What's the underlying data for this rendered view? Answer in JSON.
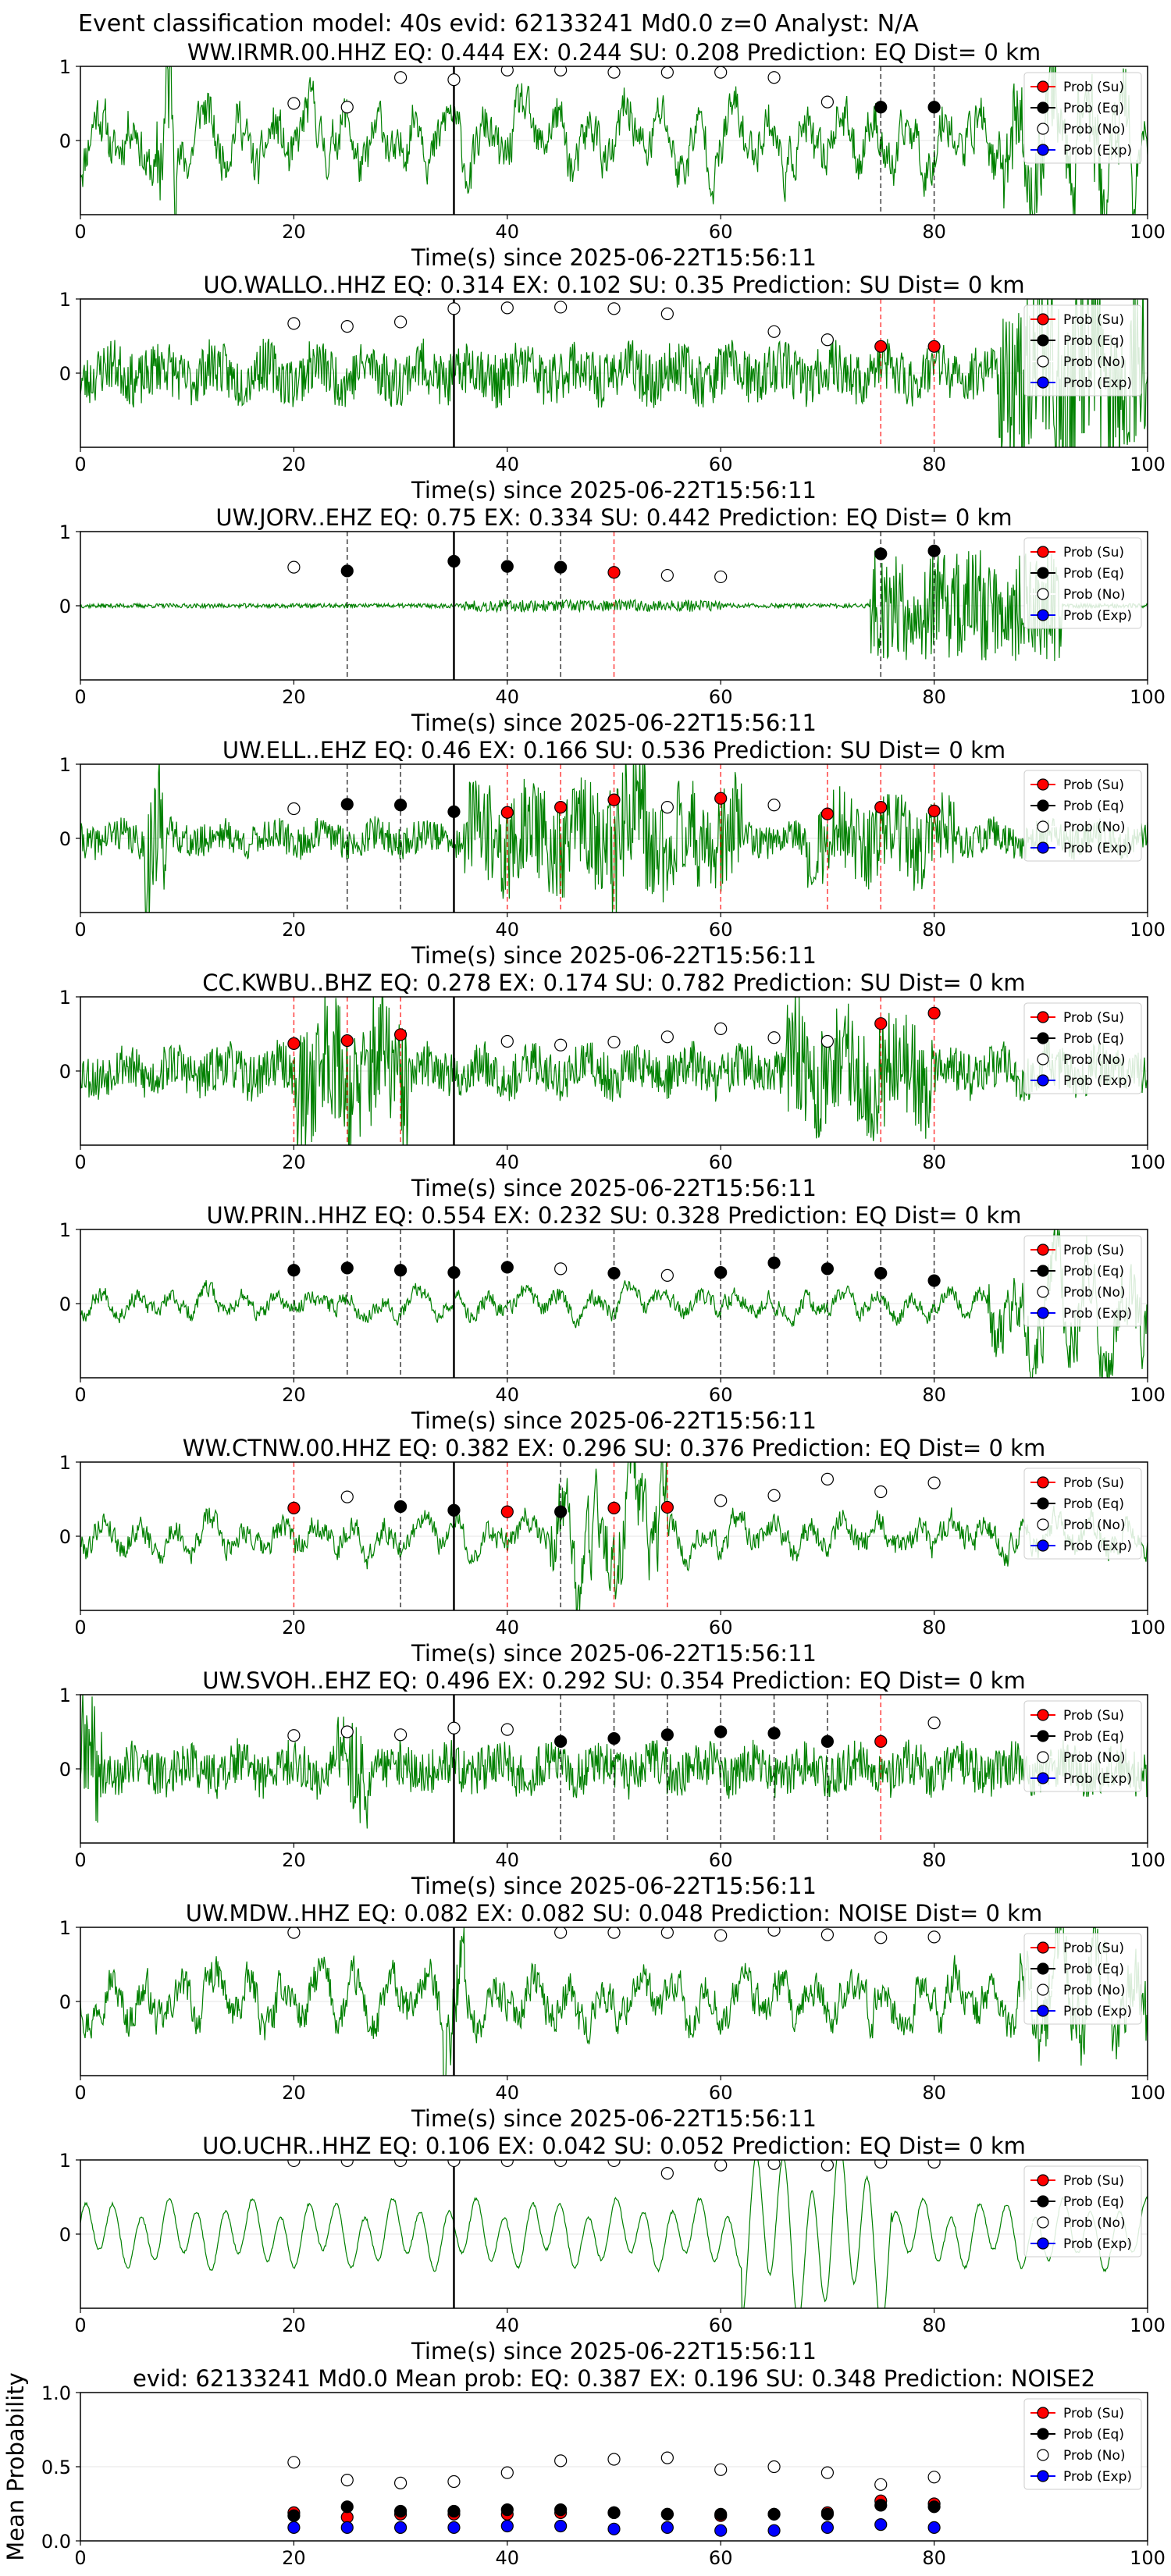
{
  "suptitle": "Event classification model: 40s evid: 62133241 Md0.0 z=0 Analyst: N/A",
  "colors": {
    "trace": "#008000",
    "su": "#ff0000",
    "eq": "#000000",
    "no": "#ffffff",
    "exp": "#0000ff",
    "su_line": "#ff0000",
    "eq_line": "#000000"
  },
  "legend": [
    "Prob (Su)",
    "Prob (Eq)",
    "Prob (No)",
    "Prob (Exp)"
  ],
  "xlabel": "Time(s) since 2025-06-22T15:56:11",
  "chart_data": [
    {
      "type": "line",
      "title": "WW.IRMR.00.HHZ   EQ: 0.444  EX: 0.244  SU: 0.208   Prediction: EQ    Dist= 0 km",
      "xlim": [
        0,
        100
      ],
      "ylim": [
        -1,
        1
      ],
      "xticks": [
        0,
        20,
        40,
        60,
        80,
        100
      ],
      "yticks": [
        0,
        1
      ],
      "arrival_s": 35,
      "trace": {
        "style": "lowfreq",
        "amp": 0.55,
        "seed": 11,
        "bursts": [
          [
            7,
            9,
            1.6
          ],
          [
            86,
            99,
            1.2
          ]
        ]
      },
      "points": [
        {
          "x": 20,
          "cls": "no",
          "y": 0.5
        },
        {
          "x": 25,
          "cls": "no",
          "y": 0.45
        },
        {
          "x": 30,
          "cls": "no",
          "y": 0.85
        },
        {
          "x": 35,
          "cls": "no",
          "y": 0.82
        },
        {
          "x": 40,
          "cls": "no",
          "y": 0.95
        },
        {
          "x": 45,
          "cls": "no",
          "y": 0.95
        },
        {
          "x": 50,
          "cls": "no",
          "y": 0.92
        },
        {
          "x": 55,
          "cls": "no",
          "y": 0.92
        },
        {
          "x": 60,
          "cls": "no",
          "y": 0.92
        },
        {
          "x": 65,
          "cls": "no",
          "y": 0.85
        },
        {
          "x": 70,
          "cls": "no",
          "y": 0.52
        },
        {
          "x": 75,
          "cls": "eq",
          "y": 0.45
        },
        {
          "x": 80,
          "cls": "eq",
          "y": 0.45
        }
      ]
    },
    {
      "type": "line",
      "title": "UO.WALLO..HHZ   EQ: 0.314  EX: 0.102  SU: 0.35   Prediction: SU    Dist= 0 km",
      "xlim": [
        0,
        100
      ],
      "ylim": [
        -1,
        1
      ],
      "xticks": [
        0,
        20,
        40,
        60,
        80,
        100
      ],
      "yticks": [
        0,
        1
      ],
      "arrival_s": 35,
      "trace": {
        "style": "noise",
        "amp": 0.4,
        "seed": 23,
        "bursts": [
          [
            86,
            100,
            1.3
          ]
        ]
      },
      "points": [
        {
          "x": 20,
          "cls": "no",
          "y": 0.67
        },
        {
          "x": 25,
          "cls": "no",
          "y": 0.63
        },
        {
          "x": 30,
          "cls": "no",
          "y": 0.69
        },
        {
          "x": 35,
          "cls": "no",
          "y": 0.87
        },
        {
          "x": 40,
          "cls": "no",
          "y": 0.88
        },
        {
          "x": 45,
          "cls": "no",
          "y": 0.89
        },
        {
          "x": 50,
          "cls": "no",
          "y": 0.87
        },
        {
          "x": 55,
          "cls": "no",
          "y": 0.8
        },
        {
          "x": 65,
          "cls": "no",
          "y": 0.56
        },
        {
          "x": 70,
          "cls": "no",
          "y": 0.45
        },
        {
          "x": 75,
          "cls": "su",
          "y": 0.36
        },
        {
          "x": 80,
          "cls": "su",
          "y": 0.36
        }
      ]
    },
    {
      "type": "line",
      "title": "UW.JORV..EHZ   EQ: 0.75  EX: 0.334  SU: 0.442   Prediction: EQ    Dist= 0 km",
      "xlim": [
        0,
        100
      ],
      "ylim": [
        -1,
        1
      ],
      "xticks": [
        0,
        20,
        40,
        60,
        80,
        100
      ],
      "yticks": [
        0,
        1
      ],
      "arrival_s": 35,
      "trace": {
        "style": "quiet",
        "amp": 0.03,
        "seed": 37,
        "bursts": [
          [
            36,
            60,
            0.08
          ],
          [
            74,
            92,
            0.75
          ]
        ]
      },
      "points": [
        {
          "x": 20,
          "cls": "no",
          "y": 0.52
        },
        {
          "x": 25,
          "cls": "eq",
          "y": 0.47
        },
        {
          "x": 35,
          "cls": "eq",
          "y": 0.6
        },
        {
          "x": 40,
          "cls": "eq",
          "y": 0.53
        },
        {
          "x": 45,
          "cls": "eq",
          "y": 0.52
        },
        {
          "x": 50,
          "cls": "su",
          "y": 0.45
        },
        {
          "x": 55,
          "cls": "no",
          "y": 0.41
        },
        {
          "x": 60,
          "cls": "no",
          "y": 0.39
        },
        {
          "x": 75,
          "cls": "eq",
          "y": 0.7
        },
        {
          "x": 80,
          "cls": "eq",
          "y": 0.74
        }
      ]
    },
    {
      "type": "line",
      "title": "UW.ELL..EHZ   EQ: 0.46  EX: 0.166  SU: 0.536   Prediction: SU    Dist= 0 km",
      "xlim": [
        0,
        100
      ],
      "ylim": [
        -1,
        1
      ],
      "xticks": [
        0,
        20,
        40,
        60,
        80,
        100
      ],
      "yticks": [
        0,
        1
      ],
      "arrival_s": 35,
      "trace": {
        "style": "noise",
        "amp": 0.25,
        "seed": 41,
        "bursts": [
          [
            6,
            8,
            1.1
          ],
          [
            36,
            62,
            0.75
          ],
          [
            48,
            54,
            1.1
          ],
          [
            68,
            82,
            0.6
          ]
        ]
      },
      "points": [
        {
          "x": 20,
          "cls": "no",
          "y": 0.4
        },
        {
          "x": 25,
          "cls": "eq",
          "y": 0.46
        },
        {
          "x": 30,
          "cls": "eq",
          "y": 0.45
        },
        {
          "x": 35,
          "cls": "eq",
          "y": 0.36
        },
        {
          "x": 40,
          "cls": "su",
          "y": 0.35
        },
        {
          "x": 45,
          "cls": "su",
          "y": 0.42
        },
        {
          "x": 50,
          "cls": "su",
          "y": 0.52
        },
        {
          "x": 55,
          "cls": "no",
          "y": 0.42
        },
        {
          "x": 60,
          "cls": "su",
          "y": 0.54
        },
        {
          "x": 65,
          "cls": "no",
          "y": 0.45
        },
        {
          "x": 70,
          "cls": "su",
          "y": 0.33
        },
        {
          "x": 75,
          "cls": "su",
          "y": 0.42
        },
        {
          "x": 80,
          "cls": "su",
          "y": 0.37
        }
      ]
    },
    {
      "type": "line",
      "title": "CC.KWBU..BHZ   EQ: 0.278  EX: 0.174  SU: 0.782   Prediction: SU    Dist= 0 km",
      "xlim": [
        0,
        100
      ],
      "ylim": [
        -1,
        1
      ],
      "xticks": [
        0,
        20,
        40,
        60,
        80,
        100
      ],
      "yticks": [
        0,
        1
      ],
      "arrival_s": 35,
      "trace": {
        "style": "noise",
        "amp": 0.35,
        "seed": 53,
        "bursts": [
          [
            20,
            31,
            1.0
          ],
          [
            66,
            80,
            0.9
          ]
        ]
      },
      "points": [
        {
          "x": 20,
          "cls": "su",
          "y": 0.37
        },
        {
          "x": 25,
          "cls": "su",
          "y": 0.41
        },
        {
          "x": 30,
          "cls": "su",
          "y": 0.49
        },
        {
          "x": 40,
          "cls": "no",
          "y": 0.4
        },
        {
          "x": 45,
          "cls": "no",
          "y": 0.35
        },
        {
          "x": 50,
          "cls": "no",
          "y": 0.39
        },
        {
          "x": 55,
          "cls": "no",
          "y": 0.46
        },
        {
          "x": 60,
          "cls": "no",
          "y": 0.57
        },
        {
          "x": 65,
          "cls": "no",
          "y": 0.45
        },
        {
          "x": 70,
          "cls": "no",
          "y": 0.4
        },
        {
          "x": 75,
          "cls": "su",
          "y": 0.64
        },
        {
          "x": 80,
          "cls": "su",
          "y": 0.78
        }
      ]
    },
    {
      "type": "line",
      "title": "UW.PRIN..HHZ   EQ: 0.554  EX: 0.232  SU: 0.328   Prediction: EQ    Dist= 0 km",
      "xlim": [
        0,
        100
      ],
      "ylim": [
        -1,
        1
      ],
      "xticks": [
        0,
        20,
        40,
        60,
        80,
        100
      ],
      "yticks": [
        0,
        1
      ],
      "arrival_s": 35,
      "trace": {
        "style": "lowfreq",
        "amp": 0.2,
        "seed": 67,
        "bursts": [
          [
            85,
            100,
            0.8
          ]
        ]
      },
      "points": [
        {
          "x": 20,
          "cls": "eq",
          "y": 0.45
        },
        {
          "x": 25,
          "cls": "eq",
          "y": 0.48
        },
        {
          "x": 30,
          "cls": "eq",
          "y": 0.45
        },
        {
          "x": 35,
          "cls": "eq",
          "y": 0.42
        },
        {
          "x": 40,
          "cls": "eq",
          "y": 0.49
        },
        {
          "x": 45,
          "cls": "no",
          "y": 0.47
        },
        {
          "x": 50,
          "cls": "eq",
          "y": 0.41
        },
        {
          "x": 55,
          "cls": "no",
          "y": 0.38
        },
        {
          "x": 60,
          "cls": "eq",
          "y": 0.42
        },
        {
          "x": 65,
          "cls": "eq",
          "y": 0.55
        },
        {
          "x": 70,
          "cls": "eq",
          "y": 0.47
        },
        {
          "x": 75,
          "cls": "eq",
          "y": 0.41
        },
        {
          "x": 80,
          "cls": "eq",
          "y": 0.31
        }
      ]
    },
    {
      "type": "line",
      "title": "WW.CTNW.00.HHZ   EQ: 0.382  EX: 0.296  SU: 0.376   Prediction: EQ    Dist= 0 km",
      "xlim": [
        0,
        100
      ],
      "ylim": [
        -1,
        1
      ],
      "xticks": [
        0,
        20,
        40,
        60,
        80,
        100
      ],
      "yticks": [
        0,
        1
      ],
      "arrival_s": 35,
      "trace": {
        "style": "lowfreq",
        "amp": 0.3,
        "seed": 79,
        "bursts": [
          [
            44,
            55,
            1.0
          ]
        ]
      },
      "points": [
        {
          "x": 20,
          "cls": "su",
          "y": 0.38
        },
        {
          "x": 25,
          "cls": "no",
          "y": 0.53
        },
        {
          "x": 30,
          "cls": "eq",
          "y": 0.4
        },
        {
          "x": 35,
          "cls": "eq",
          "y": 0.35
        },
        {
          "x": 40,
          "cls": "su",
          "y": 0.33
        },
        {
          "x": 45,
          "cls": "eq",
          "y": 0.33
        },
        {
          "x": 50,
          "cls": "su",
          "y": 0.38
        },
        {
          "x": 55,
          "cls": "su",
          "y": 0.39
        },
        {
          "x": 60,
          "cls": "no",
          "y": 0.48
        },
        {
          "x": 65,
          "cls": "no",
          "y": 0.55
        },
        {
          "x": 70,
          "cls": "no",
          "y": 0.77
        },
        {
          "x": 75,
          "cls": "no",
          "y": 0.6
        },
        {
          "x": 80,
          "cls": "no",
          "y": 0.72
        }
      ]
    },
    {
      "type": "line",
      "title": "UW.SVOH..EHZ   EQ: 0.496  EX: 0.292  SU: 0.354   Prediction: EQ    Dist= 0 km",
      "xlim": [
        0,
        100
      ],
      "ylim": [
        -1,
        1
      ],
      "xticks": [
        0,
        20,
        40,
        60,
        80,
        100
      ],
      "yticks": [
        0,
        1
      ],
      "arrival_s": 35,
      "trace": {
        "style": "noise",
        "amp": 0.35,
        "seed": 89,
        "bursts": [
          [
            0,
            2,
            0.9
          ],
          [
            24,
            27,
            0.7
          ]
        ]
      },
      "points": [
        {
          "x": 20,
          "cls": "no",
          "y": 0.45
        },
        {
          "x": 25,
          "cls": "no",
          "y": 0.5
        },
        {
          "x": 30,
          "cls": "no",
          "y": 0.46
        },
        {
          "x": 35,
          "cls": "no",
          "y": 0.55
        },
        {
          "x": 40,
          "cls": "no",
          "y": 0.53
        },
        {
          "x": 45,
          "cls": "eq",
          "y": 0.37
        },
        {
          "x": 50,
          "cls": "eq",
          "y": 0.41
        },
        {
          "x": 55,
          "cls": "eq",
          "y": 0.46
        },
        {
          "x": 60,
          "cls": "eq",
          "y": 0.5
        },
        {
          "x": 65,
          "cls": "eq",
          "y": 0.48
        },
        {
          "x": 70,
          "cls": "eq",
          "y": 0.37
        },
        {
          "x": 75,
          "cls": "su",
          "y": 0.37
        },
        {
          "x": 80,
          "cls": "no",
          "y": 0.62
        }
      ]
    },
    {
      "type": "line",
      "title": "UW.MDW..HHZ   EQ: 0.082  EX: 0.082  SU: 0.048   Prediction: NOISE    Dist= 0 km",
      "xlim": [
        0,
        100
      ],
      "ylim": [
        -1,
        1
      ],
      "xticks": [
        0,
        20,
        40,
        60,
        80,
        100
      ],
      "yticks": [
        0,
        1
      ],
      "arrival_s": 35,
      "trace": {
        "style": "lowfreq",
        "amp": 0.45,
        "seed": 97,
        "bursts": [
          [
            34,
            36,
            1.1
          ],
          [
            88,
            100,
            0.9
          ]
        ]
      },
      "points": [
        {
          "x": 20,
          "cls": "no",
          "y": 0.93
        },
        {
          "x": 45,
          "cls": "no",
          "y": 0.93
        },
        {
          "x": 50,
          "cls": "no",
          "y": 0.93
        },
        {
          "x": 55,
          "cls": "no",
          "y": 0.93
        },
        {
          "x": 60,
          "cls": "no",
          "y": 0.89
        },
        {
          "x": 65,
          "cls": "no",
          "y": 0.96
        },
        {
          "x": 70,
          "cls": "no",
          "y": 0.9
        },
        {
          "x": 75,
          "cls": "no",
          "y": 0.86
        },
        {
          "x": 80,
          "cls": "no",
          "y": 0.87
        }
      ]
    },
    {
      "type": "line",
      "title": "UO.UCHR..HHZ   EQ: 0.106  EX: 0.042  SU: 0.052   Prediction: EQ    Dist= 0 km",
      "xlim": [
        0,
        100
      ],
      "ylim": [
        -1,
        1
      ],
      "xticks": [
        0,
        20,
        40,
        60,
        80,
        100
      ],
      "yticks": [
        0,
        1
      ],
      "arrival_s": 35,
      "trace": {
        "style": "sine",
        "amp": 0.35,
        "seed": 101,
        "bursts": [
          [
            62,
            76,
            0.9
          ]
        ]
      },
      "points": [
        {
          "x": 20,
          "cls": "no",
          "y": 0.99
        },
        {
          "x": 25,
          "cls": "no",
          "y": 0.99
        },
        {
          "x": 30,
          "cls": "no",
          "y": 0.99
        },
        {
          "x": 35,
          "cls": "no",
          "y": 0.99
        },
        {
          "x": 40,
          "cls": "no",
          "y": 0.99
        },
        {
          "x": 45,
          "cls": "no",
          "y": 0.99
        },
        {
          "x": 50,
          "cls": "no",
          "y": 0.99
        },
        {
          "x": 55,
          "cls": "no",
          "y": 0.82
        },
        {
          "x": 60,
          "cls": "no",
          "y": 0.93
        },
        {
          "x": 65,
          "cls": "no",
          "y": 0.95
        },
        {
          "x": 70,
          "cls": "no",
          "y": 0.93
        },
        {
          "x": 75,
          "cls": "no",
          "y": 0.97
        },
        {
          "x": 80,
          "cls": "no",
          "y": 0.97
        }
      ]
    },
    {
      "type": "scatter",
      "title": "evid: 62133241  Md0.0   Mean prob:   EQ: 0.387  EX: 0.196  SU: 0.348   Prediction: NOISE2",
      "ylabel": "Mean Probability",
      "xlim": [
        0,
        100
      ],
      "ylim": [
        0,
        1
      ],
      "xticks": [
        0,
        20,
        40,
        60,
        80,
        100
      ],
      "yticks": [
        0.0,
        0.5,
        1.0
      ],
      "x": [
        20,
        25,
        30,
        35,
        40,
        45,
        50,
        55,
        60,
        65,
        70,
        75,
        80
      ],
      "series": [
        {
          "name": "Prob (Su)",
          "cls": "su",
          "values": [
            0.19,
            0.16,
            0.18,
            0.18,
            0.18,
            0.19,
            0.19,
            0.18,
            0.17,
            0.18,
            0.19,
            0.27,
            0.25
          ]
        },
        {
          "name": "Prob (Eq)",
          "cls": "eq",
          "values": [
            0.17,
            0.23,
            0.2,
            0.2,
            0.21,
            0.21,
            0.19,
            0.18,
            0.18,
            0.18,
            0.18,
            0.24,
            0.23
          ]
        },
        {
          "name": "Prob (No)",
          "cls": "no",
          "values": [
            0.53,
            0.41,
            0.39,
            0.4,
            0.46,
            0.54,
            0.55,
            0.56,
            0.48,
            0.5,
            0.46,
            0.38,
            0.43
          ]
        },
        {
          "name": "Prob (Exp)",
          "cls": "exp",
          "values": [
            0.09,
            0.09,
            0.09,
            0.09,
            0.1,
            0.1,
            0.08,
            0.09,
            0.07,
            0.07,
            0.09,
            0.11,
            0.09
          ]
        }
      ]
    }
  ]
}
